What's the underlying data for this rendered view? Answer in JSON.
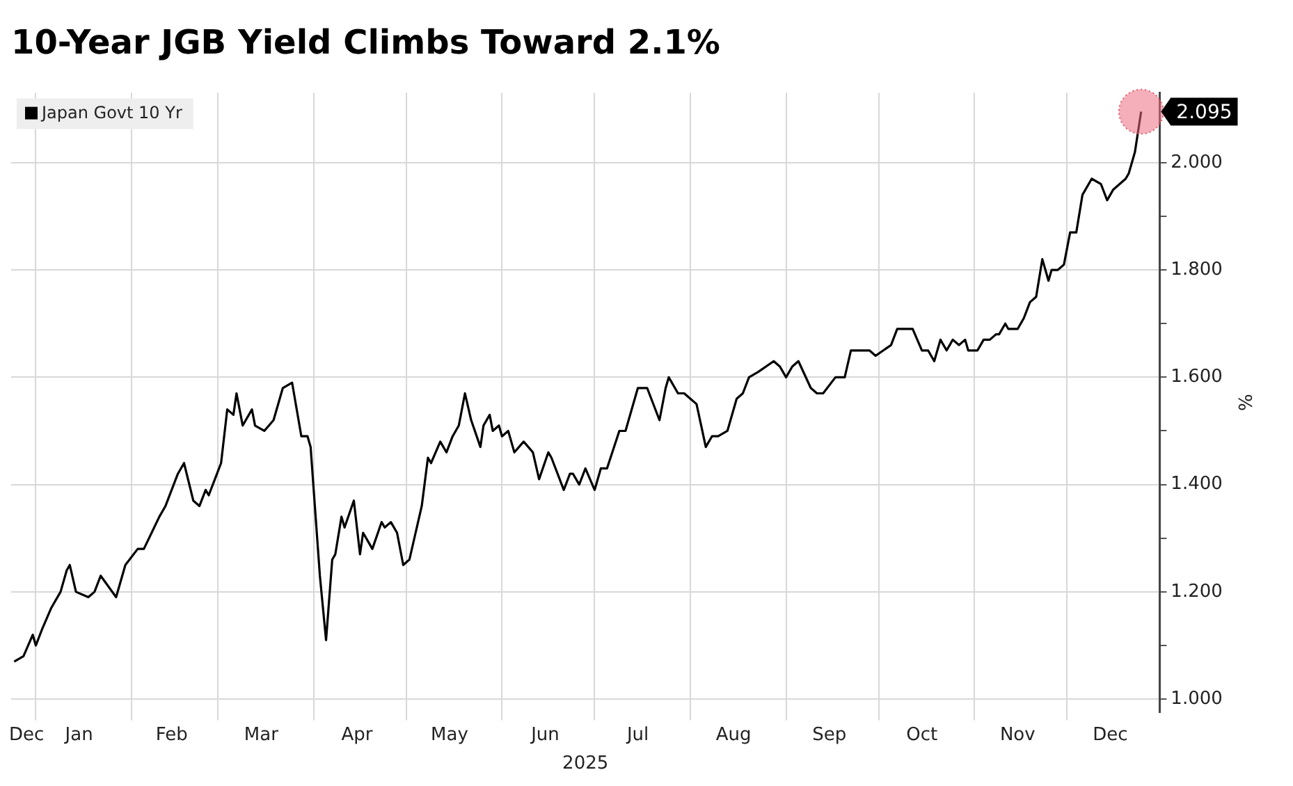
{
  "chart_data": {
    "type": "line",
    "title": "10-Year JGB Yield Climbs Toward 2.1%",
    "xlabel": "2025",
    "ylabel": "%",
    "x": [
      "2024-12-25",
      "2024-12-28",
      "2024-12-31",
      "2025-01-01",
      "2025-01-03",
      "2025-01-06",
      "2025-01-09",
      "2025-01-11",
      "2025-01-12",
      "2025-01-14",
      "2025-01-18",
      "2025-01-20",
      "2025-01-22",
      "2025-01-27",
      "2025-01-30",
      "2025-02-03",
      "2025-02-05",
      "2025-02-10",
      "2025-02-12",
      "2025-02-16",
      "2025-02-18",
      "2025-02-21",
      "2025-02-23",
      "2025-02-25",
      "2025-02-26",
      "2025-02-28",
      "2025-03-02",
      "2025-03-04",
      "2025-03-06",
      "2025-03-07",
      "2025-03-09",
      "2025-03-12",
      "2025-03-13",
      "2025-03-16",
      "2025-03-19",
      "2025-03-22",
      "2025-03-25",
      "2025-03-28",
      "2025-03-30",
      "2025-03-31",
      "2025-04-03",
      "2025-04-05",
      "2025-04-07",
      "2025-04-08",
      "2025-04-10",
      "2025-04-11",
      "2025-04-14",
      "2025-04-16",
      "2025-04-17",
      "2025-04-20",
      "2025-04-23",
      "2025-04-24",
      "2025-04-26",
      "2025-04-28",
      "2025-04-30",
      "2025-05-02",
      "2025-05-04",
      "2025-05-06",
      "2025-05-08",
      "2025-05-09",
      "2025-05-12",
      "2025-05-14",
      "2025-05-16",
      "2025-05-18",
      "2025-05-20",
      "2025-05-22",
      "2025-05-25",
      "2025-05-26",
      "2025-05-28",
      "2025-05-29",
      "2025-05-31",
      "2025-06-01",
      "2025-06-03",
      "2025-06-05",
      "2025-06-08",
      "2025-06-11",
      "2025-06-13",
      "2025-06-16",
      "2025-06-17",
      "2025-06-19",
      "2025-06-21",
      "2025-06-23",
      "2025-06-24",
      "2025-06-26",
      "2025-06-28",
      "2025-07-01",
      "2025-07-03",
      "2025-07-05",
      "2025-07-09",
      "2025-07-11",
      "2025-07-12",
      "2025-07-15",
      "2025-07-18",
      "2025-07-22",
      "2025-07-24",
      "2025-07-25",
      "2025-07-28",
      "2025-07-30",
      "2025-08-01",
      "2025-08-03",
      "2025-08-06",
      "2025-08-08",
      "2025-08-10",
      "2025-08-13",
      "2025-08-16",
      "2025-08-18",
      "2025-08-20",
      "2025-08-23",
      "2025-08-28",
      "2025-08-30",
      "2025-09-01",
      "2025-09-03",
      "2025-09-05",
      "2025-09-09",
      "2025-09-11",
      "2025-09-13",
      "2025-09-17",
      "2025-09-20",
      "2025-09-22",
      "2025-09-25",
      "2025-09-28",
      "2025-09-30",
      "2025-10-05",
      "2025-10-07",
      "2025-10-09",
      "2025-10-12",
      "2025-10-15",
      "2025-10-17",
      "2025-10-19",
      "2025-10-21",
      "2025-10-23",
      "2025-10-25",
      "2025-10-27",
      "2025-10-29",
      "2025-10-30",
      "2025-11-02",
      "2025-11-04",
      "2025-11-06",
      "2025-11-08",
      "2025-11-09",
      "2025-11-11",
      "2025-11-12",
      "2025-11-15",
      "2025-11-17",
      "2025-11-19",
      "2025-11-21",
      "2025-11-23",
      "2025-11-25",
      "2025-11-26",
      "2025-11-28",
      "2025-11-30",
      "2025-12-02",
      "2025-12-04",
      "2025-12-06",
      "2025-12-09",
      "2025-12-12",
      "2025-12-14",
      "2025-12-16",
      "2025-12-18",
      "2025-12-20",
      "2025-12-21",
      "2025-12-23",
      "2025-12-25"
    ],
    "series": [
      {
        "name": "Japan Govt 10 Yr",
        "color": "#000000",
        "values": [
          1.07,
          1.08,
          1.12,
          1.1,
          1.13,
          1.17,
          1.2,
          1.24,
          1.25,
          1.2,
          1.19,
          1.2,
          1.23,
          1.19,
          1.25,
          1.28,
          1.28,
          1.34,
          1.36,
          1.42,
          1.44,
          1.37,
          1.36,
          1.39,
          1.38,
          1.41,
          1.44,
          1.54,
          1.53,
          1.57,
          1.51,
          1.54,
          1.51,
          1.5,
          1.52,
          1.58,
          1.59,
          1.49,
          1.49,
          1.47,
          1.23,
          1.11,
          1.26,
          1.27,
          1.34,
          1.32,
          1.37,
          1.27,
          1.31,
          1.28,
          1.33,
          1.32,
          1.33,
          1.31,
          1.25,
          1.26,
          1.31,
          1.36,
          1.45,
          1.44,
          1.48,
          1.46,
          1.49,
          1.51,
          1.57,
          1.52,
          1.47,
          1.51,
          1.53,
          1.5,
          1.51,
          1.49,
          1.5,
          1.46,
          1.48,
          1.46,
          1.41,
          1.46,
          1.45,
          1.42,
          1.39,
          1.42,
          1.42,
          1.4,
          1.43,
          1.39,
          1.43,
          1.43,
          1.5,
          1.5,
          1.52,
          1.58,
          1.58,
          1.52,
          1.58,
          1.6,
          1.57,
          1.57,
          1.56,
          1.55,
          1.47,
          1.49,
          1.49,
          1.5,
          1.56,
          1.57,
          1.6,
          1.61,
          1.63,
          1.62,
          1.6,
          1.62,
          1.63,
          1.58,
          1.57,
          1.57,
          1.6,
          1.6,
          1.65,
          1.65,
          1.65,
          1.64,
          1.66,
          1.69,
          1.69,
          1.69,
          1.65,
          1.65,
          1.63,
          1.67,
          1.65,
          1.67,
          1.66,
          1.67,
          1.65,
          1.65,
          1.67,
          1.67,
          1.68,
          1.68,
          1.7,
          1.69,
          1.69,
          1.71,
          1.74,
          1.75,
          1.82,
          1.78,
          1.8,
          1.8,
          1.81,
          1.87,
          1.87,
          1.94,
          1.97,
          1.96,
          1.93,
          1.95,
          1.96,
          1.97,
          1.98,
          2.02,
          2.095
        ]
      }
    ],
    "xlim": [
      "2024-12-24",
      "2025-12-31"
    ],
    "xticks": [
      {
        "value": "2024-12-29",
        "label": "Dec"
      },
      {
        "value": "2025-01-01",
        "label": null
      },
      {
        "value": "2025-01-15",
        "label": "Jan"
      },
      {
        "value": "2025-02-01",
        "label": null
      },
      {
        "value": "2025-02-14",
        "label": "Feb"
      },
      {
        "value": "2025-03-01",
        "label": null
      },
      {
        "value": "2025-03-15",
        "label": "Mar"
      },
      {
        "value": "2025-04-01",
        "label": null
      },
      {
        "value": "2025-04-15",
        "label": "Apr"
      },
      {
        "value": "2025-05-01",
        "label": null
      },
      {
        "value": "2025-05-15",
        "label": "May"
      },
      {
        "value": "2025-06-01",
        "label": null
      },
      {
        "value": "2025-06-15",
        "label": "Jun"
      },
      {
        "value": "2025-07-01",
        "label": null
      },
      {
        "value": "2025-07-15",
        "label": "Jul"
      },
      {
        "value": "2025-08-01",
        "label": null
      },
      {
        "value": "2025-08-15",
        "label": "Aug"
      },
      {
        "value": "2025-09-01",
        "label": null
      },
      {
        "value": "2025-09-15",
        "label": "Sep"
      },
      {
        "value": "2025-10-01",
        "label": null
      },
      {
        "value": "2025-10-15",
        "label": "Oct"
      },
      {
        "value": "2025-11-01",
        "label": null
      },
      {
        "value": "2025-11-15",
        "label": "Nov"
      },
      {
        "value": "2025-12-01",
        "label": null
      },
      {
        "value": "2025-12-15",
        "label": "Dec"
      }
    ],
    "ylim": [
      0.976,
      2.13
    ],
    "yticks": [
      {
        "value": 1,
        "label": "1.000"
      },
      {
        "value": 1.1,
        "label": null
      },
      {
        "value": 1.2,
        "label": "1.200"
      },
      {
        "value": 1.3,
        "label": null
      },
      {
        "value": 1.4,
        "label": "1.400"
      },
      {
        "value": 1.5,
        "label": null
      },
      {
        "value": 1.6,
        "label": "1.600"
      },
      {
        "value": 1.7,
        "label": null
      },
      {
        "value": 1.8,
        "label": "1.800"
      },
      {
        "value": 1.9,
        "label": null
      },
      {
        "value": 2,
        "label": "2.000"
      }
    ],
    "grid": true,
    "legend": "top left",
    "marker": "none",
    "line_style": "solid",
    "annotations": [
      {
        "text": "2.095",
        "x": "2025-12-25",
        "y": 2.095
      }
    ]
  }
}
